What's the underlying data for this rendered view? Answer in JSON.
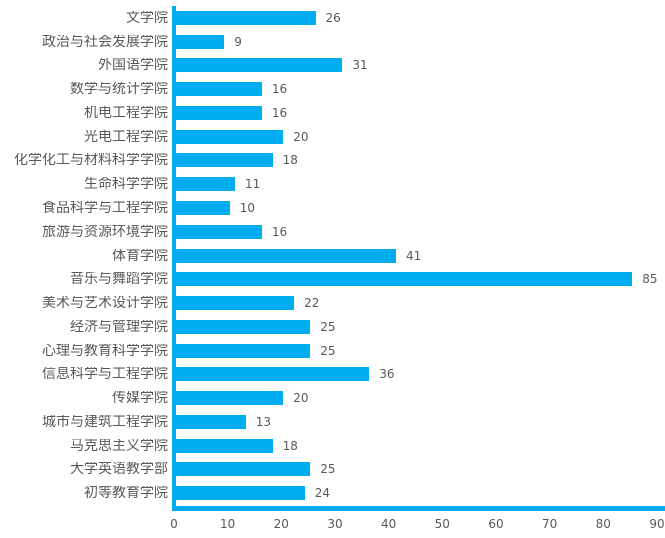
{
  "chart_data": {
    "type": "bar",
    "orientation": "horizontal",
    "title": "",
    "xlabel": "",
    "ylabel": "",
    "xlim": [
      0,
      90
    ],
    "x_ticks": [
      0,
      10,
      20,
      30,
      40,
      50,
      60,
      70,
      80,
      90
    ],
    "grid": false,
    "legend": "none",
    "bar_color": "#00AEEF",
    "axis_color": "#00AEEF",
    "text_color": "#595959",
    "categories": [
      "文学院",
      "政治与社会发展学院",
      "外国语学院",
      "数学与统计学院",
      "机电工程学院",
      "光电工程学院",
      "化学化工与材料科学学院",
      "生命科学学院",
      "食品科学与工程学院",
      "旅游与资源环境学院",
      "体育学院",
      "音乐与舞蹈学院",
      "美术与艺术设计学院",
      "经济与管理学院",
      "心理与教育科学学院",
      "信息科学与工程学院",
      "传媒学院",
      "城市与建筑工程学院",
      "马克思主义学院",
      "大学英语教学部",
      "初等教育学院"
    ],
    "values": [
      26,
      9,
      31,
      16,
      16,
      20,
      18,
      11,
      10,
      16,
      41,
      85,
      22,
      25,
      25,
      36,
      20,
      13,
      18,
      25,
      24
    ]
  }
}
